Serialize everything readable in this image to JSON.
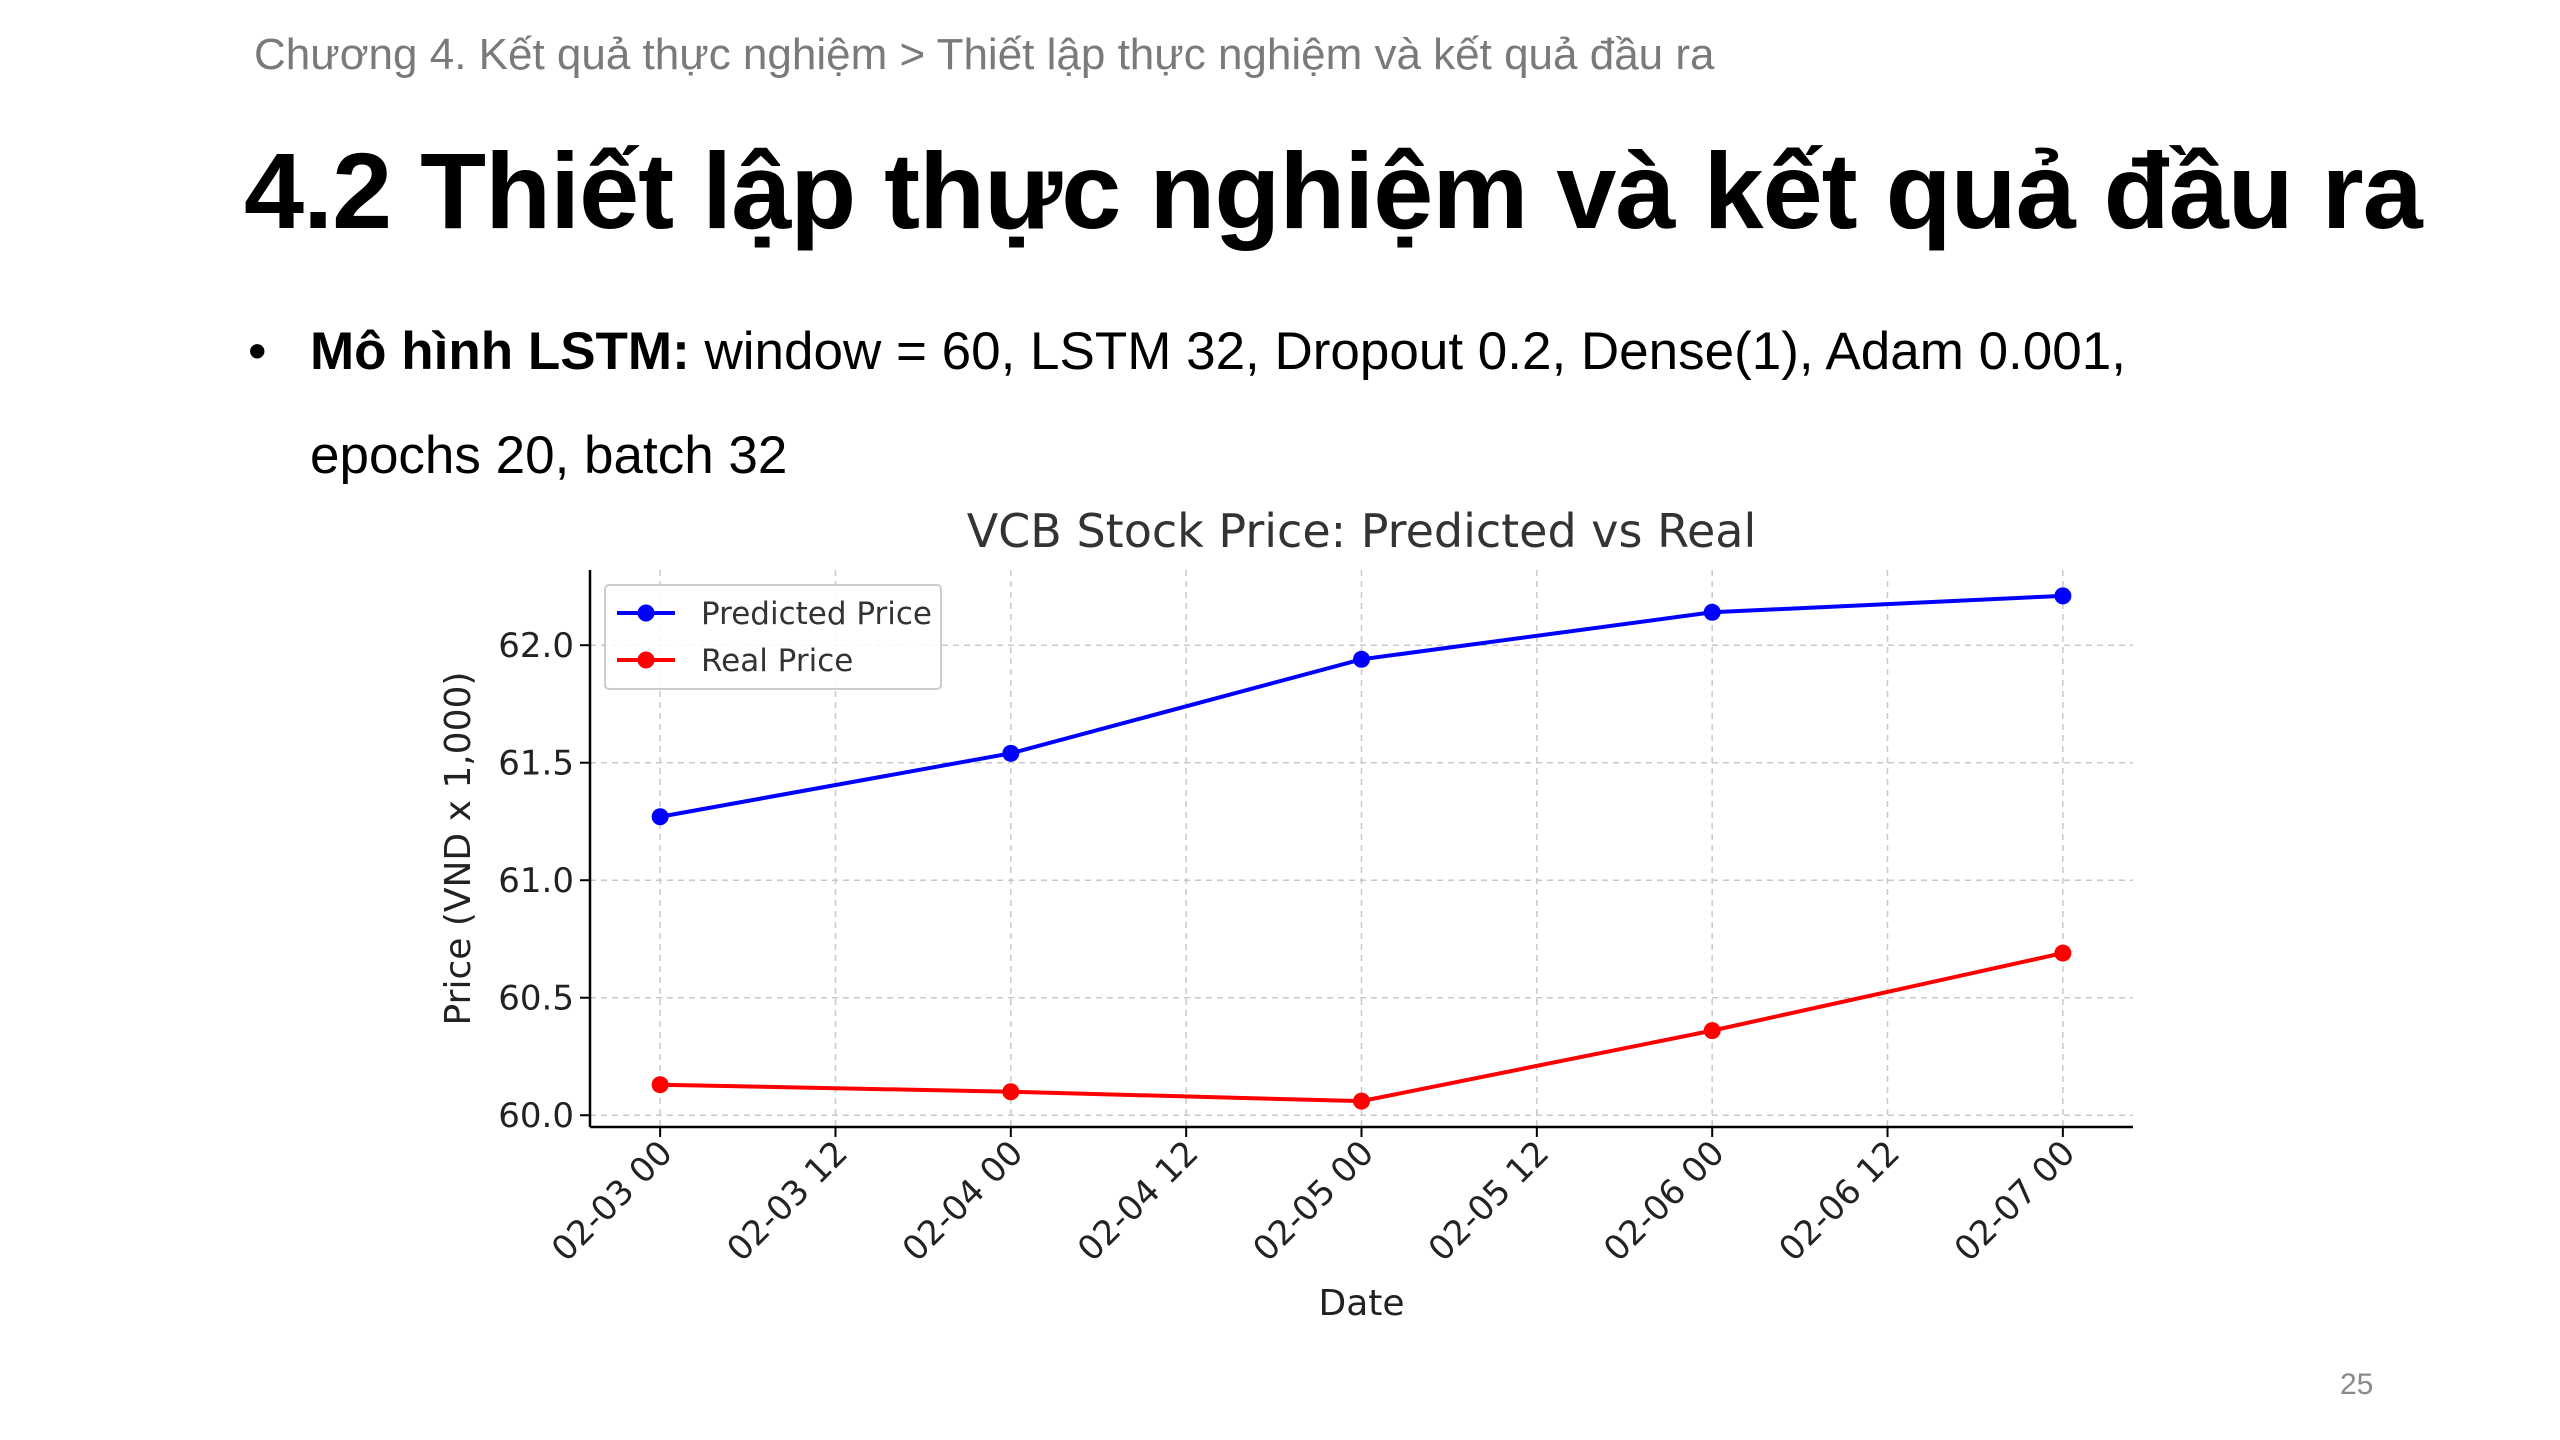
{
  "slide": {
    "breadcrumb": "Chương 4. Kết quả thực nghiệm > Thiết lập thực nghiệm và kết quả đầu ra",
    "title": "4.2 Thiết lập thực nghiệm và kết quả đầu ra",
    "bullet": {
      "marker": "•",
      "bold_label": "Mô hình LSTM:",
      "text_line1": " window = 60, LSTM 32, Dropout 0.2, Dense(1), Adam 0.001,",
      "text_line2": "epochs 20, batch 32"
    },
    "page_number": "25"
  },
  "chart_data": {
    "type": "line",
    "title": "VCB Stock Price: Predicted vs Real",
    "xlabel": "Date",
    "ylabel": "Price (VND x 1,000)",
    "x": [
      "02-03 00",
      "02-04 00",
      "02-05 00",
      "02-06 00",
      "02-07 00"
    ],
    "x_numeric": [
      0,
      1,
      2,
      3,
      4
    ],
    "xticks": [
      {
        "value": 0,
        "label": "02-03 00"
      },
      {
        "value": 0.5,
        "label": "02-03 12"
      },
      {
        "value": 1,
        "label": "02-04 00"
      },
      {
        "value": 1.5,
        "label": "02-04 12"
      },
      {
        "value": 2,
        "label": "02-05 00"
      },
      {
        "value": 2.5,
        "label": "02-05 12"
      },
      {
        "value": 3,
        "label": "02-06 00"
      },
      {
        "value": 3.5,
        "label": "02-06 12"
      },
      {
        "value": 4,
        "label": "02-07 00"
      }
    ],
    "xlim": [
      -0.2,
      4.2
    ],
    "yticks": [
      {
        "value": 60.0,
        "label": "60.0"
      },
      {
        "value": 60.5,
        "label": "60.5"
      },
      {
        "value": 61.0,
        "label": "61.0"
      },
      {
        "value": 61.5,
        "label": "61.5"
      },
      {
        "value": 62.0,
        "label": "62.0"
      }
    ],
    "ylim": [
      59.95,
      62.32
    ],
    "grid": true,
    "legend_position": "upper-left",
    "series": [
      {
        "name": "Predicted Price",
        "color": "#0000ff",
        "values": [
          61.27,
          61.54,
          61.94,
          62.14,
          62.21
        ]
      },
      {
        "name": "Real Price",
        "color": "#ff0000",
        "values": [
          60.13,
          60.1,
          60.06,
          60.36,
          60.69
        ]
      }
    ]
  }
}
